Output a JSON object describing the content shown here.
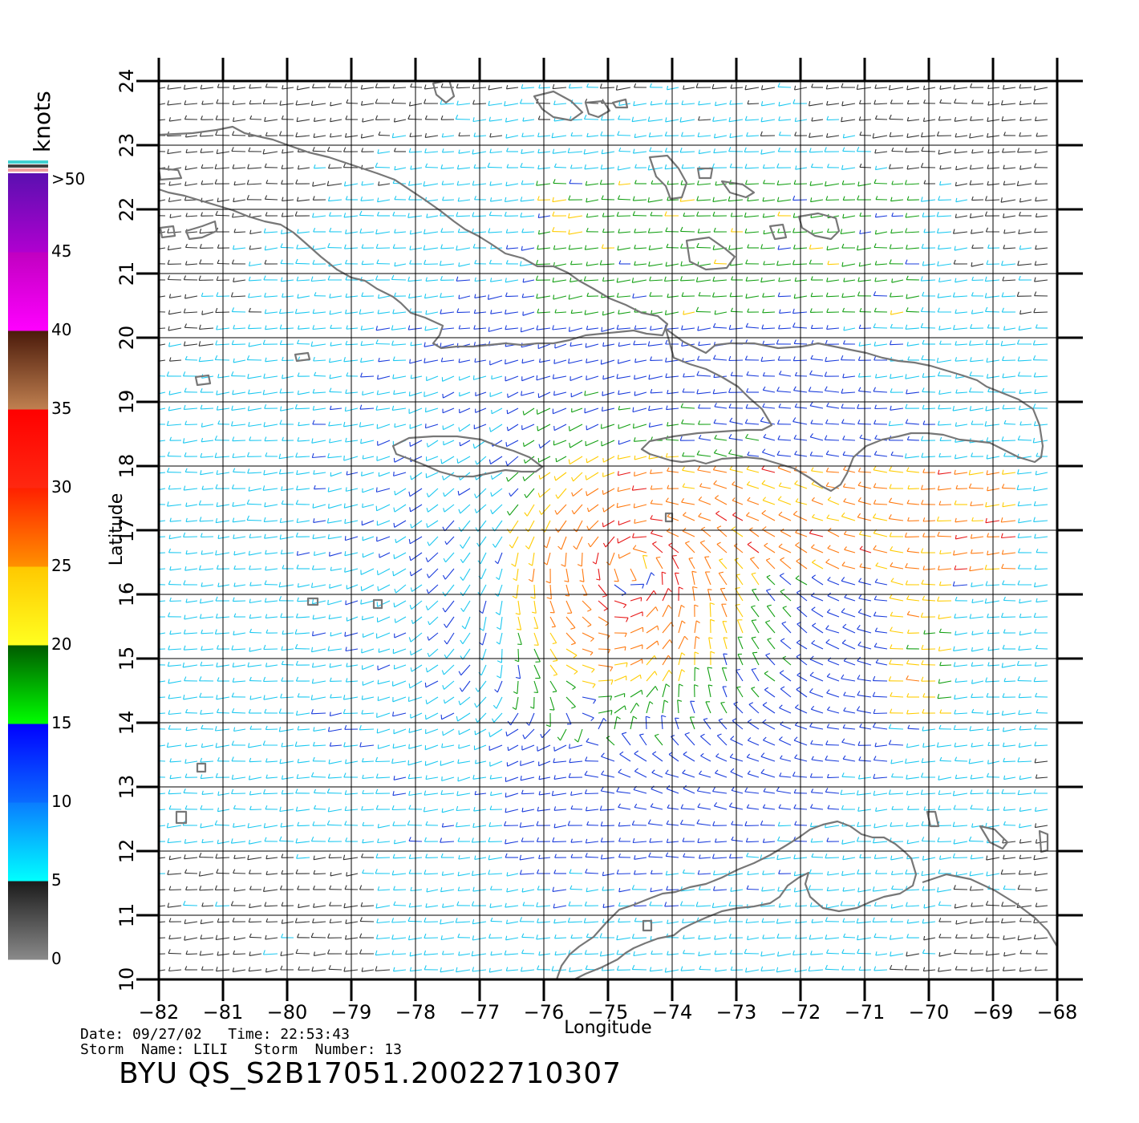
{
  "map": {
    "x_label": "Longitude",
    "y_label": "Latitude",
    "lon_ticks": [
      "−82",
      "−81",
      "−80",
      "−79",
      "−78",
      "−77",
      "−76",
      "−75",
      "−74",
      "−73",
      "−72",
      "−71",
      "−70",
      "−69",
      "−68"
    ],
    "lat_ticks": [
      "10",
      "11",
      "12",
      "13",
      "14",
      "15",
      "16",
      "17",
      "18",
      "19",
      "20",
      "21",
      "22",
      "23",
      "24"
    ],
    "lon_range": [
      -82,
      -68
    ],
    "lat_range": [
      10,
      24
    ],
    "storm_center": {
      "lon": -74.6,
      "lat": 16.4
    },
    "land_color": "#777777",
    "grid_color": "#000000"
  },
  "colorbar": {
    "unit": "knots",
    "labels": [
      ">50",
      "45",
      "40",
      "35",
      "30",
      "25",
      "20",
      "15",
      "10",
      "5",
      "0"
    ],
    "segments": [
      {
        "from": 0,
        "to": 5,
        "top": "#1a1a1a",
        "bottom": "#8a8a8a"
      },
      {
        "from": 5,
        "to": 10,
        "top": "#0a7cff",
        "bottom": "#00ffff"
      },
      {
        "from": 10,
        "to": 15,
        "top": "#0000ff",
        "bottom": "#0a6cff"
      },
      {
        "from": 15,
        "to": 20,
        "top": "#005a00",
        "bottom": "#00ff00"
      },
      {
        "from": 20,
        "to": 25,
        "top": "#ffc800",
        "bottom": "#ffff20"
      },
      {
        "from": 25,
        "to": 30,
        "top": "#ff2000",
        "bottom": "#ff9000"
      },
      {
        "from": 30,
        "to": 35,
        "top": "#ff0000",
        "bottom": "#ff2810"
      },
      {
        "from": 35,
        "to": 40,
        "top": "#4a1a0a",
        "bottom": "#c08050"
      },
      {
        "from": 40,
        "to": 45,
        "top": "#c000c0",
        "bottom": "#ff00ff"
      },
      {
        "from": 45,
        "to": 50,
        "top": "#5a10b0",
        "bottom": "#b000d0"
      }
    ],
    "over_stripes": [
      "#40d0d0",
      "#404040",
      "#f0a0a0"
    ]
  },
  "footer": {
    "line1": "Date: 09/27/02   Time: 22:53:43",
    "line2": "Storm  Name: LILI   Storm  Number: 13",
    "title": "BYU  QS_S2B17051.20022710307"
  }
}
